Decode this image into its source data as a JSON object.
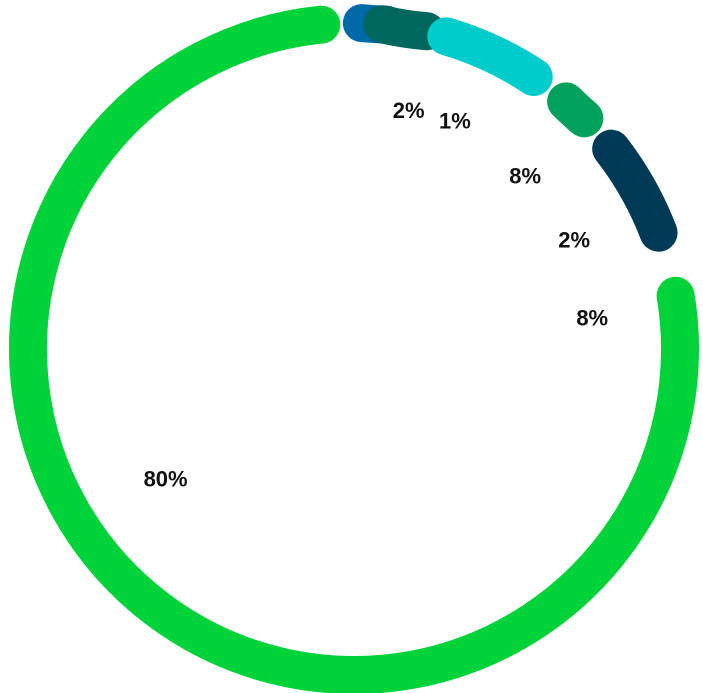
{
  "chart_data": {
    "type": "pie",
    "variant": "donut",
    "title": "",
    "legend": "none",
    "slices": [
      {
        "label": "2%",
        "value": 2,
        "color": "#006aa8"
      },
      {
        "label": "1%",
        "value": 1,
        "color": "#00675f"
      },
      {
        "label": "8%",
        "value": 8,
        "color": "#00cccc"
      },
      {
        "label": "2%",
        "value": 2,
        "color": "#00a15a"
      },
      {
        "label": "8%",
        "value": 8,
        "color": "#003a57"
      },
      {
        "label": "80%",
        "value": 80,
        "color": "#00d33a"
      }
    ]
  }
}
